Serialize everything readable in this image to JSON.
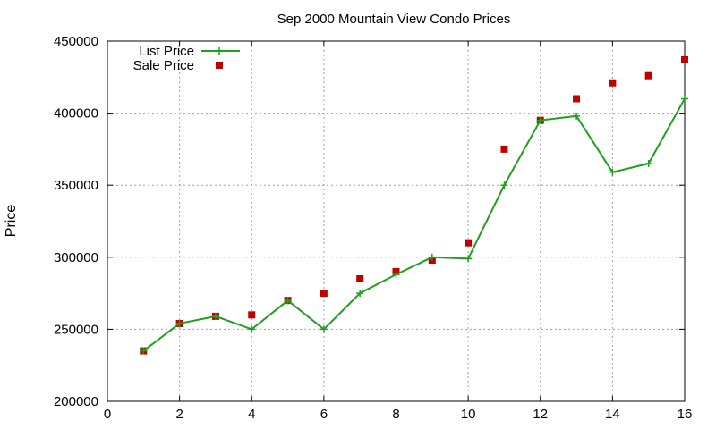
{
  "chart_data": {
    "type": "line",
    "title": "Sep 2000 Mountain View Condo Prices",
    "xlabel": "",
    "ylabel": "Price",
    "xlim": [
      0,
      16
    ],
    "ylim": [
      200000,
      450000
    ],
    "xticks": [
      0,
      2,
      4,
      6,
      8,
      10,
      12,
      14,
      16
    ],
    "yticks": [
      200000,
      250000,
      300000,
      350000,
      400000,
      450000
    ],
    "grid": true,
    "legend_position": "top-left",
    "series": [
      {
        "name": "List Price",
        "style": "lines+crosses",
        "color": "#1ea01e",
        "points": [
          [
            1,
            235000
          ],
          [
            2,
            254000
          ],
          [
            3,
            259000
          ],
          [
            4,
            250000
          ],
          [
            5,
            270000
          ],
          [
            6,
            250000
          ],
          [
            7,
            275000
          ],
          [
            8,
            288000
          ],
          [
            9,
            300000
          ],
          [
            10,
            299000
          ],
          [
            11,
            350000
          ],
          [
            12,
            395000
          ],
          [
            13,
            398000
          ],
          [
            14,
            359000
          ],
          [
            15,
            365000
          ],
          [
            16,
            410000
          ]
        ]
      },
      {
        "name": "Sale Price",
        "style": "squares",
        "color": "#c00000",
        "points": [
          [
            1,
            235000
          ],
          [
            2,
            254000
          ],
          [
            3,
            259000
          ],
          [
            4,
            260000
          ],
          [
            5,
            270000
          ],
          [
            6,
            275000
          ],
          [
            7,
            285000
          ],
          [
            8,
            290000
          ],
          [
            9,
            298000
          ],
          [
            10,
            310000
          ],
          [
            11,
            375000
          ],
          [
            12,
            395000
          ],
          [
            13,
            410000
          ],
          [
            14,
            421000
          ],
          [
            15,
            426000
          ],
          [
            16,
            437000
          ]
        ]
      }
    ]
  }
}
